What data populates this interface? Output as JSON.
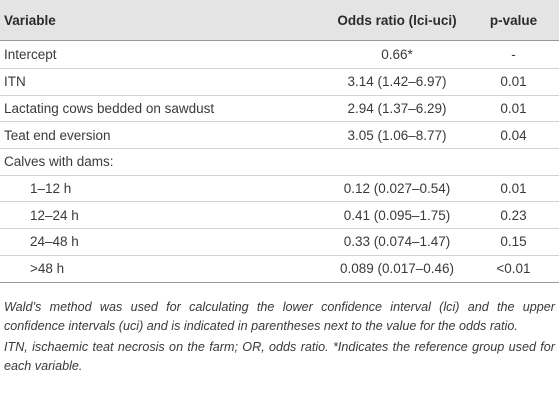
{
  "table": {
    "headers": {
      "variable": "Variable",
      "odds_ratio": "Odds ratio (lci-uci)",
      "p_value": "p-value"
    },
    "rows": [
      {
        "variable": "Intercept",
        "odds_ratio": "0.66*",
        "p_value": "-",
        "indent": false
      },
      {
        "variable": "ITN",
        "odds_ratio": "3.14 (1.42–6.97)",
        "p_value": "0.01",
        "indent": false
      },
      {
        "variable": "Lactating cows bedded on sawdust",
        "odds_ratio": "2.94 (1.37–6.29)",
        "p_value": "0.01",
        "indent": false
      },
      {
        "variable": "Teat end eversion",
        "odds_ratio": "3.05 (1.06–8.77)",
        "p_value": "0.04",
        "indent": false
      },
      {
        "variable": "Calves with dams:",
        "odds_ratio": "",
        "p_value": "",
        "indent": false
      },
      {
        "variable": "1–12 h",
        "odds_ratio": "0.12 (0.027–0.54)",
        "p_value": "0.01",
        "indent": true
      },
      {
        "variable": "12–24 h",
        "odds_ratio": "0.41 (0.095–1.75)",
        "p_value": "0.23",
        "indent": true
      },
      {
        "variable": "24–48 h",
        "odds_ratio": "0.33 (0.074–1.47)",
        "p_value": "0.15",
        "indent": true
      },
      {
        "variable": ">48 h",
        "odds_ratio": "0.089 (0.017–0.46)",
        "p_value": "<0.01",
        "indent": true
      }
    ]
  },
  "notes": {
    "note1": "Wald’s method was used for calculating the lower confidence interval (lci) and the upper confidence intervals (uci) and is indicated in parentheses next to the value for the odds ratio.",
    "note2": "ITN, ischaemic teat necrosis on the farm; OR, odds ratio. *Indicates the reference group used for each variable."
  },
  "colors": {
    "header_bg": "#e4e4e4",
    "text": "#333333",
    "rule": "#999999",
    "row_line": "#d3d3d3"
  }
}
